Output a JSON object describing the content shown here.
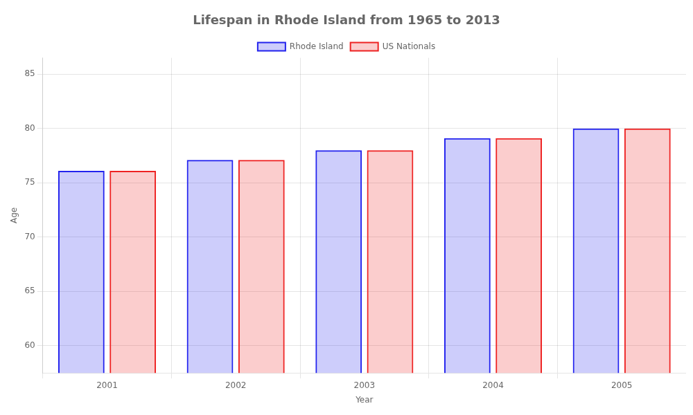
{
  "chart_data": {
    "type": "bar",
    "title": "Lifespan in Rhode Island from 1965 to 2013",
    "xlabel": "Year",
    "ylabel": "Age",
    "categories": [
      "2001",
      "2002",
      "2003",
      "2004",
      "2005"
    ],
    "series": [
      {
        "name": "Rhode Island",
        "color": "#2222ee",
        "values": [
          76.1,
          77.1,
          78.0,
          79.1,
          80.0
        ]
      },
      {
        "name": "US Nationals",
        "color": "#ee2222",
        "values": [
          76.1,
          77.1,
          78.0,
          79.1,
          80.0
        ]
      }
    ],
    "ylim": [
      57.5,
      86.5
    ],
    "yticks": [
      60,
      65,
      70,
      75,
      80,
      85
    ],
    "grid": true,
    "legend": "top"
  }
}
